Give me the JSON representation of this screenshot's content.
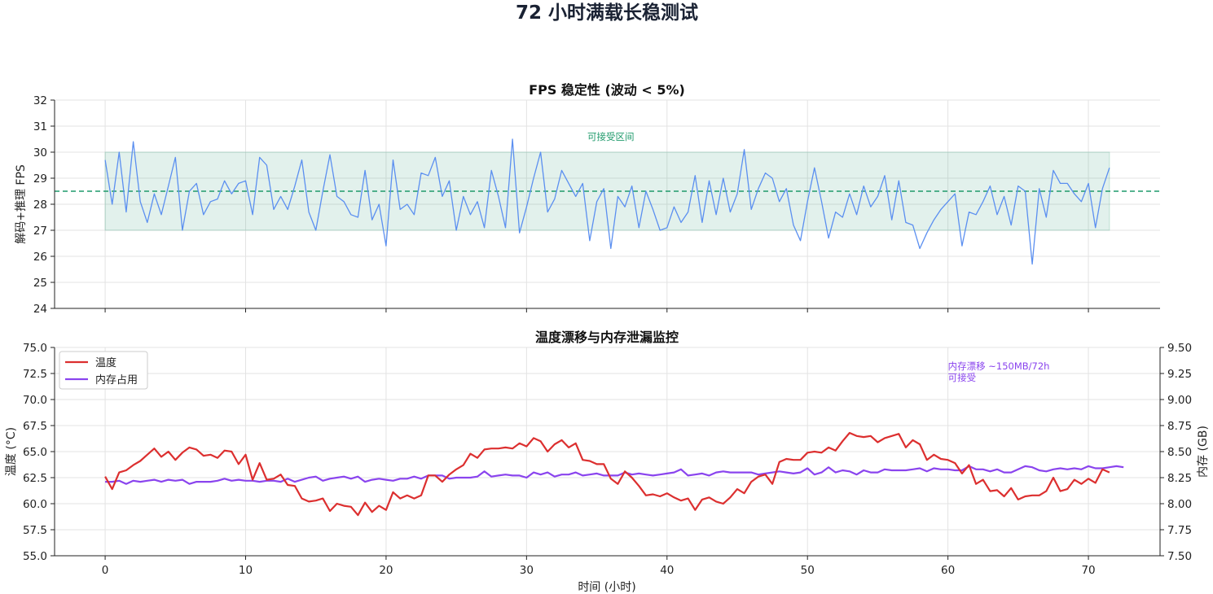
{
  "suptitle": "72 小时满载长稳测试",
  "colors": {
    "fps_line": "#5b8ff0",
    "band": "#2f9e77",
    "ref_line": "#1f9a6b",
    "temp": "#dc2f2f",
    "mem": "#8a44ee",
    "grid": "#e3e3e3",
    "axis": "#222222"
  },
  "chart_data": [
    {
      "type": "line",
      "title": "FPS 稳定性 (波动 < 5%)",
      "xlabel": "",
      "ylabel": "解码+推理 FPS",
      "xlim": [
        -3.6,
        75.1
      ],
      "ylim": [
        24,
        32
      ],
      "xticks": [
        0,
        10,
        20,
        30,
        40,
        50,
        60,
        70
      ],
      "yticks": [
        24,
        25,
        26,
        27,
        28,
        29,
        30,
        31,
        32
      ],
      "grid": true,
      "band": {
        "y0": 27,
        "y1": 30,
        "x0": 0,
        "x1": 71.5
      },
      "ref_line": 28.5,
      "annotation": {
        "text": "可接受区间",
        "x": 36,
        "y": 30.6
      },
      "series": [
        {
          "name": "",
          "x_step": 0.5,
          "values": [
            29.7,
            28.0,
            30.0,
            27.7,
            30.4,
            28.1,
            27.3,
            28.4,
            27.6,
            28.7,
            29.8,
            27.0,
            28.5,
            28.8,
            27.6,
            28.1,
            28.2,
            28.9,
            28.4,
            28.8,
            28.9,
            27.6,
            29.8,
            29.5,
            27.8,
            28.3,
            27.8,
            28.7,
            29.7,
            27.7,
            27.0,
            28.5,
            29.9,
            28.3,
            28.1,
            27.6,
            27.5,
            29.3,
            27.4,
            28.0,
            26.4,
            29.7,
            27.8,
            28.0,
            27.6,
            29.2,
            29.1,
            29.8,
            28.3,
            28.9,
            27.0,
            28.3,
            27.6,
            28.1,
            27.1,
            29.3,
            28.3,
            27.1,
            30.5,
            26.9,
            27.9,
            29.0,
            30.0,
            27.7,
            28.2,
            29.3,
            28.8,
            28.3,
            28.8,
            26.6,
            28.1,
            28.6,
            26.3,
            28.3,
            27.9,
            28.7,
            27.1,
            28.5,
            27.8,
            27.0,
            27.1,
            27.9,
            27.3,
            27.7,
            29.1,
            27.3,
            28.9,
            27.6,
            29.0,
            27.7,
            28.4,
            30.1,
            27.8,
            28.6,
            29.2,
            29.0,
            28.1,
            28.6,
            27.2,
            26.6,
            28.1,
            29.4,
            28.1,
            26.7,
            27.7,
            27.5,
            28.4,
            27.6,
            28.7,
            27.9,
            28.3,
            29.1,
            27.4,
            28.9,
            27.3,
            27.2,
            26.3,
            26.9,
            27.4,
            27.8,
            28.1,
            28.4,
            26.4,
            27.7,
            27.6,
            28.1,
            28.7,
            27.6,
            28.3,
            27.2,
            28.7,
            28.5,
            25.7,
            28.6,
            27.5,
            29.3,
            28.8,
            28.8,
            28.4,
            28.1,
            28.8,
            27.1,
            28.6,
            29.4
          ]
        }
      ]
    },
    {
      "type": "line",
      "title": "温度漂移与内存泄漏监控",
      "xlabel": "时间 (小时)",
      "ylabel": "温度 (°C)",
      "ylabel_right": "内存 (GB)",
      "xlim": [
        -3.6,
        75.1
      ],
      "ylim": [
        55.0,
        75.0
      ],
      "ylim_right": [
        7.5,
        9.5
      ],
      "xticks": [
        0,
        10,
        20,
        30,
        40,
        50,
        60,
        70
      ],
      "yticks": [
        "55.0",
        "57.5",
        "60.0",
        "62.5",
        "65.0",
        "67.5",
        "70.0",
        "72.5",
        "75.0"
      ],
      "yticks_right": [
        "7.50",
        "7.75",
        "8.00",
        "8.25",
        "8.50",
        "8.75",
        "9.00",
        "9.25",
        "9.50"
      ],
      "grid": true,
      "legend": "top-left",
      "annotation": {
        "line1": "内存漂移 ~150MB/72h",
        "line2": "可接受",
        "x": 60,
        "y_right": 9.32
      },
      "series": [
        {
          "name": "温度",
          "axis": "left",
          "x_step": 0.5,
          "values": [
            62.6,
            61.4,
            63.0,
            63.2,
            63.7,
            64.1,
            64.7,
            65.3,
            64.5,
            65.0,
            64.2,
            64.9,
            65.4,
            65.2,
            64.6,
            64.7,
            64.4,
            65.1,
            65.0,
            63.8,
            64.7,
            62.3,
            63.9,
            62.3,
            62.4,
            62.8,
            61.8,
            61.7,
            60.5,
            60.2,
            60.3,
            60.5,
            59.3,
            60.0,
            59.8,
            59.7,
            58.9,
            60.1,
            59.2,
            59.8,
            59.4,
            61.1,
            60.5,
            60.8,
            60.5,
            60.8,
            62.7,
            62.7,
            62.1,
            62.8,
            63.3,
            63.7,
            64.8,
            64.4,
            65.2,
            65.3,
            65.3,
            65.4,
            65.3,
            65.8,
            65.5,
            66.3,
            66.0,
            65.0,
            65.7,
            66.1,
            65.4,
            65.8,
            64.2,
            64.1,
            63.8,
            63.8,
            62.4,
            61.9,
            63.1,
            62.5,
            61.7,
            60.8,
            60.9,
            60.7,
            61.0,
            60.6,
            60.3,
            60.5,
            59.4,
            60.4,
            60.6,
            60.2,
            60.0,
            60.6,
            61.4,
            61.0,
            62.1,
            62.6,
            62.8,
            61.9,
            64.0,
            64.3,
            64.2,
            64.2,
            64.9,
            65.0,
            64.9,
            65.4,
            65.1,
            66.0,
            66.8,
            66.5,
            66.4,
            66.5,
            65.9,
            66.3,
            66.5,
            66.7,
            65.4,
            66.1,
            65.7,
            64.2,
            64.7,
            64.3,
            64.2,
            63.9,
            62.9,
            63.7,
            61.9,
            62.3,
            61.2,
            61.3,
            60.7,
            61.5,
            60.4,
            60.7,
            60.8,
            60.8,
            61.2,
            62.5,
            61.2,
            61.4,
            62.3,
            61.9,
            62.4,
            62.0,
            63.3,
            63.0
          ]
        },
        {
          "name": "内存占用",
          "axis": "right",
          "x_step": 0.5,
          "values": [
            8.21,
            8.21,
            8.22,
            8.19,
            8.22,
            8.21,
            8.22,
            8.23,
            8.21,
            8.23,
            8.22,
            8.23,
            8.19,
            8.21,
            8.21,
            8.21,
            8.22,
            8.24,
            8.22,
            8.23,
            8.22,
            8.22,
            8.21,
            8.22,
            8.22,
            8.21,
            8.24,
            8.21,
            8.23,
            8.25,
            8.26,
            8.22,
            8.24,
            8.25,
            8.26,
            8.24,
            8.26,
            8.21,
            8.23,
            8.24,
            8.23,
            8.22,
            8.24,
            8.24,
            8.26,
            8.24,
            8.27,
            8.27,
            8.27,
            8.24,
            8.25,
            8.25,
            8.25,
            8.26,
            8.31,
            8.26,
            8.27,
            8.28,
            8.27,
            8.27,
            8.25,
            8.3,
            8.28,
            8.3,
            8.26,
            8.28,
            8.28,
            8.3,
            8.27,
            8.28,
            8.29,
            8.27,
            8.27,
            8.27,
            8.3,
            8.28,
            8.29,
            8.28,
            8.27,
            8.28,
            8.29,
            8.3,
            8.33,
            8.27,
            8.28,
            8.29,
            8.27,
            8.3,
            8.31,
            8.3,
            8.3,
            8.3,
            8.3,
            8.28,
            8.29,
            8.3,
            8.31,
            8.3,
            8.29,
            8.3,
            8.34,
            8.28,
            8.3,
            8.35,
            8.3,
            8.32,
            8.31,
            8.28,
            8.32,
            8.3,
            8.3,
            8.33,
            8.32,
            8.32,
            8.32,
            8.33,
            8.34,
            8.31,
            8.34,
            8.33,
            8.33,
            8.32,
            8.32,
            8.36,
            8.33,
            8.33,
            8.31,
            8.33,
            8.3,
            8.3,
            8.33,
            8.36,
            8.35,
            8.32,
            8.31,
            8.33,
            8.34,
            8.33,
            8.34,
            8.33,
            8.36,
            8.34,
            8.34,
            8.35,
            8.36,
            8.35
          ]
        }
      ]
    }
  ]
}
